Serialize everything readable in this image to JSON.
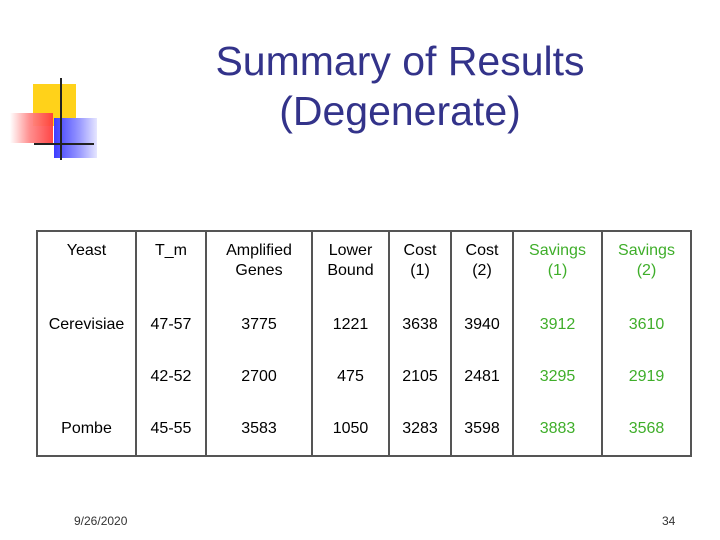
{
  "slide": {
    "title_line1": "Summary of Results",
    "title_line2": "(Degenerate)",
    "date": "9/26/2020",
    "page_number": "34"
  },
  "table": {
    "headers": [
      {
        "line1": "Yeast",
        "line2": ""
      },
      {
        "line1": "T_m",
        "line2": ""
      },
      {
        "line1": "Amplified",
        "line2": "Genes"
      },
      {
        "line1": "Lower",
        "line2": "Bound"
      },
      {
        "line1": "Cost",
        "line2": "(1)"
      },
      {
        "line1": "Cost",
        "line2": "(2)"
      },
      {
        "line1": "Savings",
        "line2": "(1)"
      },
      {
        "line1": "Savings",
        "line2": "(2)"
      }
    ],
    "rows": [
      [
        "Cerevisiae",
        "47-57",
        "3775",
        "1221",
        "3638",
        "3940",
        "3912",
        "3610"
      ],
      [
        "",
        "42-52",
        "2700",
        "475",
        "2105",
        "2481",
        "3295",
        "2919"
      ],
      [
        "Pombe",
        "45-55",
        "3583",
        "1050",
        "3283",
        "3598",
        "3883",
        "3568"
      ]
    ],
    "highlight_color": "#3fae2a"
  }
}
